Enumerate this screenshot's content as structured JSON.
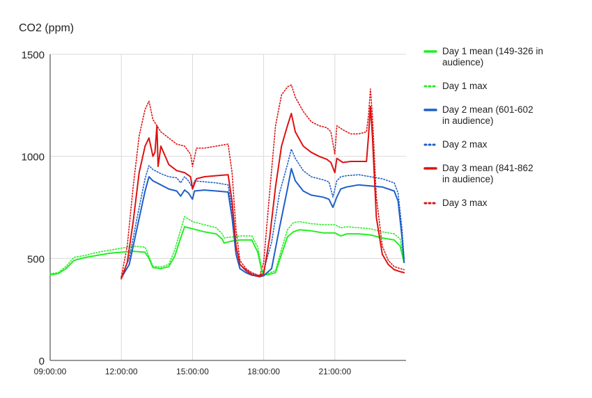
{
  "chart_data": {
    "type": "line",
    "ylabel": "CO2 (ppm)",
    "xlim": [
      "09:00:00",
      "24:00:00"
    ],
    "ylim": [
      0,
      1500
    ],
    "x_ticks": [
      "09:00:00",
      "12:00:00",
      "15:00:00",
      "18:00:00",
      "21:00:00"
    ],
    "y_ticks": [
      0,
      500,
      1000,
      1500
    ],
    "grid": true,
    "legend_position": "right",
    "series": [
      {
        "name": "Day 1 mean (149-326 in audience)",
        "color": "#22ee22",
        "style": "solid",
        "points": [
          [
            "09:00:00",
            420
          ],
          [
            "09:20:00",
            425
          ],
          [
            "09:40:00",
            450
          ],
          [
            "10:00:00",
            490
          ],
          [
            "10:30:00",
            505
          ],
          [
            "11:00:00",
            515
          ],
          [
            "11:30:00",
            525
          ],
          [
            "12:00:00",
            530
          ],
          [
            "12:30:00",
            535
          ],
          [
            "13:00:00",
            530
          ],
          [
            "13:10:00",
            500
          ],
          [
            "13:20:00",
            455
          ],
          [
            "13:40:00",
            450
          ],
          [
            "14:00:00",
            460
          ],
          [
            "14:15:00",
            510
          ],
          [
            "14:30:00",
            600
          ],
          [
            "14:40:00",
            655
          ],
          [
            "15:00:00",
            645
          ],
          [
            "15:30:00",
            630
          ],
          [
            "16:00:00",
            620
          ],
          [
            "16:15:00",
            595
          ],
          [
            "16:20:00",
            575
          ],
          [
            "16:40:00",
            585
          ],
          [
            "17:00:00",
            590
          ],
          [
            "17:30:00",
            590
          ],
          [
            "17:45:00",
            530
          ],
          [
            "17:55:00",
            440
          ],
          [
            "18:00:00",
            420
          ],
          [
            "18:10:00",
            420
          ],
          [
            "18:30:00",
            430
          ],
          [
            "18:45:00",
            520
          ],
          [
            "19:00:00",
            605
          ],
          [
            "19:15:00",
            630
          ],
          [
            "19:30:00",
            640
          ],
          [
            "20:00:00",
            635
          ],
          [
            "20:30:00",
            625
          ],
          [
            "21:00:00",
            625
          ],
          [
            "21:15:00",
            610
          ],
          [
            "21:30:00",
            620
          ],
          [
            "22:00:00",
            620
          ],
          [
            "22:30:00",
            615
          ],
          [
            "23:00:00",
            600
          ],
          [
            "23:30:00",
            590
          ],
          [
            "23:45:00",
            560
          ],
          [
            "23:55:00",
            480
          ]
        ]
      },
      {
        "name": "Day 1 max",
        "color": "#22ee22",
        "style": "dotted",
        "points": [
          [
            "09:00:00",
            425
          ],
          [
            "09:20:00",
            430
          ],
          [
            "09:40:00",
            460
          ],
          [
            "10:00:00",
            505
          ],
          [
            "10:30:00",
            515
          ],
          [
            "11:00:00",
            530
          ],
          [
            "11:30:00",
            540
          ],
          [
            "12:00:00",
            550
          ],
          [
            "12:30:00",
            560
          ],
          [
            "13:00:00",
            555
          ],
          [
            "13:10:00",
            510
          ],
          [
            "13:20:00",
            462
          ],
          [
            "13:40:00",
            458
          ],
          [
            "14:00:00",
            470
          ],
          [
            "14:15:00",
            540
          ],
          [
            "14:30:00",
            640
          ],
          [
            "14:40:00",
            705
          ],
          [
            "15:00:00",
            680
          ],
          [
            "15:30:00",
            665
          ],
          [
            "16:00:00",
            650
          ],
          [
            "16:15:00",
            620
          ],
          [
            "16:20:00",
            600
          ],
          [
            "16:40:00",
            605
          ],
          [
            "17:00:00",
            610
          ],
          [
            "17:30:00",
            610
          ],
          [
            "17:45:00",
            555
          ],
          [
            "17:55:00",
            450
          ],
          [
            "18:00:00",
            425
          ],
          [
            "18:10:00",
            425
          ],
          [
            "18:30:00",
            440
          ],
          [
            "18:45:00",
            545
          ],
          [
            "19:00:00",
            640
          ],
          [
            "19:15:00",
            675
          ],
          [
            "19:30:00",
            680
          ],
          [
            "20:00:00",
            670
          ],
          [
            "20:30:00",
            665
          ],
          [
            "21:00:00",
            665
          ],
          [
            "21:15:00",
            650
          ],
          [
            "21:30:00",
            655
          ],
          [
            "22:00:00",
            650
          ],
          [
            "22:30:00",
            645
          ],
          [
            "23:00:00",
            630
          ],
          [
            "23:30:00",
            620
          ],
          [
            "23:45:00",
            595
          ],
          [
            "23:55:00",
            490
          ]
        ]
      },
      {
        "name": "Day 2 mean  (601-602 in audience)",
        "color": "#1e5ec8",
        "style": "solid",
        "points": [
          [
            "12:00:00",
            405
          ],
          [
            "12:20:00",
            470
          ],
          [
            "12:40:00",
            650
          ],
          [
            "13:00:00",
            830
          ],
          [
            "13:10:00",
            900
          ],
          [
            "13:20:00",
            880
          ],
          [
            "13:40:00",
            860
          ],
          [
            "14:00:00",
            840
          ],
          [
            "14:20:00",
            830
          ],
          [
            "14:30:00",
            805
          ],
          [
            "14:40:00",
            835
          ],
          [
            "14:50:00",
            820
          ],
          [
            "15:00:00",
            790
          ],
          [
            "15:05:00",
            830
          ],
          [
            "15:30:00",
            835
          ],
          [
            "16:00:00",
            830
          ],
          [
            "16:30:00",
            825
          ],
          [
            "16:40:00",
            700
          ],
          [
            "16:50:00",
            520
          ],
          [
            "17:00:00",
            450
          ],
          [
            "17:15:00",
            430
          ],
          [
            "17:30:00",
            418
          ],
          [
            "17:50:00",
            410
          ],
          [
            "18:00:00",
            415
          ],
          [
            "18:20:00",
            450
          ],
          [
            "18:40:00",
            650
          ],
          [
            "19:00:00",
            840
          ],
          [
            "19:10:00",
            940
          ],
          [
            "19:20:00",
            880
          ],
          [
            "19:40:00",
            830
          ],
          [
            "20:00:00",
            810
          ],
          [
            "20:30:00",
            800
          ],
          [
            "20:45:00",
            790
          ],
          [
            "20:55:00",
            750
          ],
          [
            "21:05:00",
            800
          ],
          [
            "21:15:00",
            840
          ],
          [
            "21:30:00",
            850
          ],
          [
            "22:00:00",
            860
          ],
          [
            "22:30:00",
            855
          ],
          [
            "23:00:00",
            850
          ],
          [
            "23:30:00",
            830
          ],
          [
            "23:40:00",
            780
          ],
          [
            "23:50:00",
            600
          ],
          [
            "23:55:00",
            480
          ]
        ]
      },
      {
        "name": "Day 2 max",
        "color": "#1e5ec8",
        "style": "dotted",
        "points": [
          [
            "12:00:00",
            410
          ],
          [
            "12:20:00",
            500
          ],
          [
            "12:40:00",
            700
          ],
          [
            "13:00:00",
            890
          ],
          [
            "13:10:00",
            955
          ],
          [
            "13:20:00",
            935
          ],
          [
            "13:40:00",
            915
          ],
          [
            "14:00:00",
            900
          ],
          [
            "14:20:00",
            895
          ],
          [
            "14:30:00",
            870
          ],
          [
            "14:40:00",
            900
          ],
          [
            "14:50:00",
            880
          ],
          [
            "15:00:00",
            845
          ],
          [
            "15:05:00",
            880
          ],
          [
            "15:30:00",
            875
          ],
          [
            "16:00:00",
            870
          ],
          [
            "16:30:00",
            860
          ],
          [
            "16:40:00",
            740
          ],
          [
            "16:50:00",
            560
          ],
          [
            "17:00:00",
            470
          ],
          [
            "17:15:00",
            445
          ],
          [
            "17:30:00",
            425
          ],
          [
            "17:50:00",
            415
          ],
          [
            "18:00:00",
            440
          ],
          [
            "18:20:00",
            580
          ],
          [
            "18:40:00",
            820
          ],
          [
            "19:00:00",
            960
          ],
          [
            "19:10:00",
            1035
          ],
          [
            "19:20:00",
            990
          ],
          [
            "19:40:00",
            930
          ],
          [
            "20:00:00",
            900
          ],
          [
            "20:30:00",
            885
          ],
          [
            "20:45:00",
            875
          ],
          [
            "20:55:00",
            800
          ],
          [
            "21:05:00",
            880
          ],
          [
            "21:15:00",
            900
          ],
          [
            "21:30:00",
            905
          ],
          [
            "22:00:00",
            910
          ],
          [
            "22:30:00",
            900
          ],
          [
            "23:00:00",
            890
          ],
          [
            "23:30:00",
            870
          ],
          [
            "23:40:00",
            820
          ],
          [
            "23:50:00",
            640
          ],
          [
            "23:55:00",
            500
          ]
        ]
      },
      {
        "name": "Day 3 mean  (841-862 in audience)",
        "color": "#dd1111",
        "style": "solid",
        "points": [
          [
            "12:00:00",
            400
          ],
          [
            "12:15:00",
            480
          ],
          [
            "12:30:00",
            680
          ],
          [
            "12:45:00",
            920
          ],
          [
            "13:00:00",
            1050
          ],
          [
            "13:10:00",
            1090
          ],
          [
            "13:20:00",
            1000
          ],
          [
            "13:25:00",
            1020
          ],
          [
            "13:30:00",
            1150
          ],
          [
            "13:33:00",
            950
          ],
          [
            "13:40:00",
            1050
          ],
          [
            "14:00:00",
            960
          ],
          [
            "14:20:00",
            930
          ],
          [
            "14:40:00",
            920
          ],
          [
            "14:55:00",
            900
          ],
          [
            "15:00:00",
            840
          ],
          [
            "15:10:00",
            890
          ],
          [
            "15:30:00",
            900
          ],
          [
            "16:00:00",
            905
          ],
          [
            "16:30:00",
            910
          ],
          [
            "16:40:00",
            780
          ],
          [
            "16:50:00",
            560
          ],
          [
            "17:00:00",
            470
          ],
          [
            "17:15:00",
            440
          ],
          [
            "17:30:00",
            420
          ],
          [
            "17:50:00",
            410
          ],
          [
            "18:00:00",
            425
          ],
          [
            "18:15:00",
            600
          ],
          [
            "18:30:00",
            850
          ],
          [
            "18:45:00",
            1050
          ],
          [
            "19:00:00",
            1150
          ],
          [
            "19:10:00",
            1210
          ],
          [
            "19:20:00",
            1120
          ],
          [
            "19:40:00",
            1050
          ],
          [
            "20:00:00",
            1020
          ],
          [
            "20:20:00",
            1000
          ],
          [
            "20:40:00",
            985
          ],
          [
            "20:50:00",
            970
          ],
          [
            "21:00:00",
            920
          ],
          [
            "21:05:00",
            990
          ],
          [
            "21:20:00",
            970
          ],
          [
            "21:40:00",
            975
          ],
          [
            "22:00:00",
            975
          ],
          [
            "22:20:00",
            975
          ],
          [
            "22:25:00",
            1100
          ],
          [
            "22:30:00",
            1245
          ],
          [
            "22:35:00",
            1100
          ],
          [
            "22:45:00",
            700
          ],
          [
            "23:00:00",
            520
          ],
          [
            "23:15:00",
            470
          ],
          [
            "23:30:00",
            445
          ],
          [
            "23:45:00",
            435
          ],
          [
            "23:55:00",
            430
          ]
        ]
      },
      {
        "name": "Day 3 max",
        "color": "#dd1111",
        "style": "dotted",
        "points": [
          [
            "12:00:00",
            410
          ],
          [
            "12:15:00",
            560
          ],
          [
            "12:30:00",
            850
          ],
          [
            "12:45:00",
            1100
          ],
          [
            "13:00:00",
            1230
          ],
          [
            "13:10:00",
            1270
          ],
          [
            "13:20:00",
            1180
          ],
          [
            "13:30:00",
            1150
          ],
          [
            "13:40:00",
            1120
          ],
          [
            "14:00:00",
            1090
          ],
          [
            "14:20:00",
            1060
          ],
          [
            "14:40:00",
            1050
          ],
          [
            "14:55:00",
            1010
          ],
          [
            "15:00:00",
            950
          ],
          [
            "15:10:00",
            1040
          ],
          [
            "15:30:00",
            1040
          ],
          [
            "16:00:00",
            1050
          ],
          [
            "16:30:00",
            1060
          ],
          [
            "16:40:00",
            920
          ],
          [
            "16:50:00",
            640
          ],
          [
            "17:00:00",
            490
          ],
          [
            "17:15:00",
            450
          ],
          [
            "17:30:00",
            430
          ],
          [
            "17:50:00",
            415
          ],
          [
            "18:00:00",
            480
          ],
          [
            "18:15:00",
            820
          ],
          [
            "18:30:00",
            1150
          ],
          [
            "18:45:00",
            1300
          ],
          [
            "19:00:00",
            1340
          ],
          [
            "19:10:00",
            1350
          ],
          [
            "19:20:00",
            1290
          ],
          [
            "19:40:00",
            1220
          ],
          [
            "20:00:00",
            1170
          ],
          [
            "20:20:00",
            1150
          ],
          [
            "20:40:00",
            1140
          ],
          [
            "20:50:00",
            1120
          ],
          [
            "21:00:00",
            1010
          ],
          [
            "21:05:00",
            1150
          ],
          [
            "21:20:00",
            1130
          ],
          [
            "21:40:00",
            1110
          ],
          [
            "22:00:00",
            1110
          ],
          [
            "22:20:00",
            1120
          ],
          [
            "22:25:00",
            1200
          ],
          [
            "22:30:00",
            1330
          ],
          [
            "22:35:00",
            1200
          ],
          [
            "22:45:00",
            800
          ],
          [
            "23:00:00",
            560
          ],
          [
            "23:15:00",
            490
          ],
          [
            "23:30:00",
            460
          ],
          [
            "23:45:00",
            450
          ],
          [
            "23:55:00",
            445
          ]
        ]
      }
    ]
  }
}
